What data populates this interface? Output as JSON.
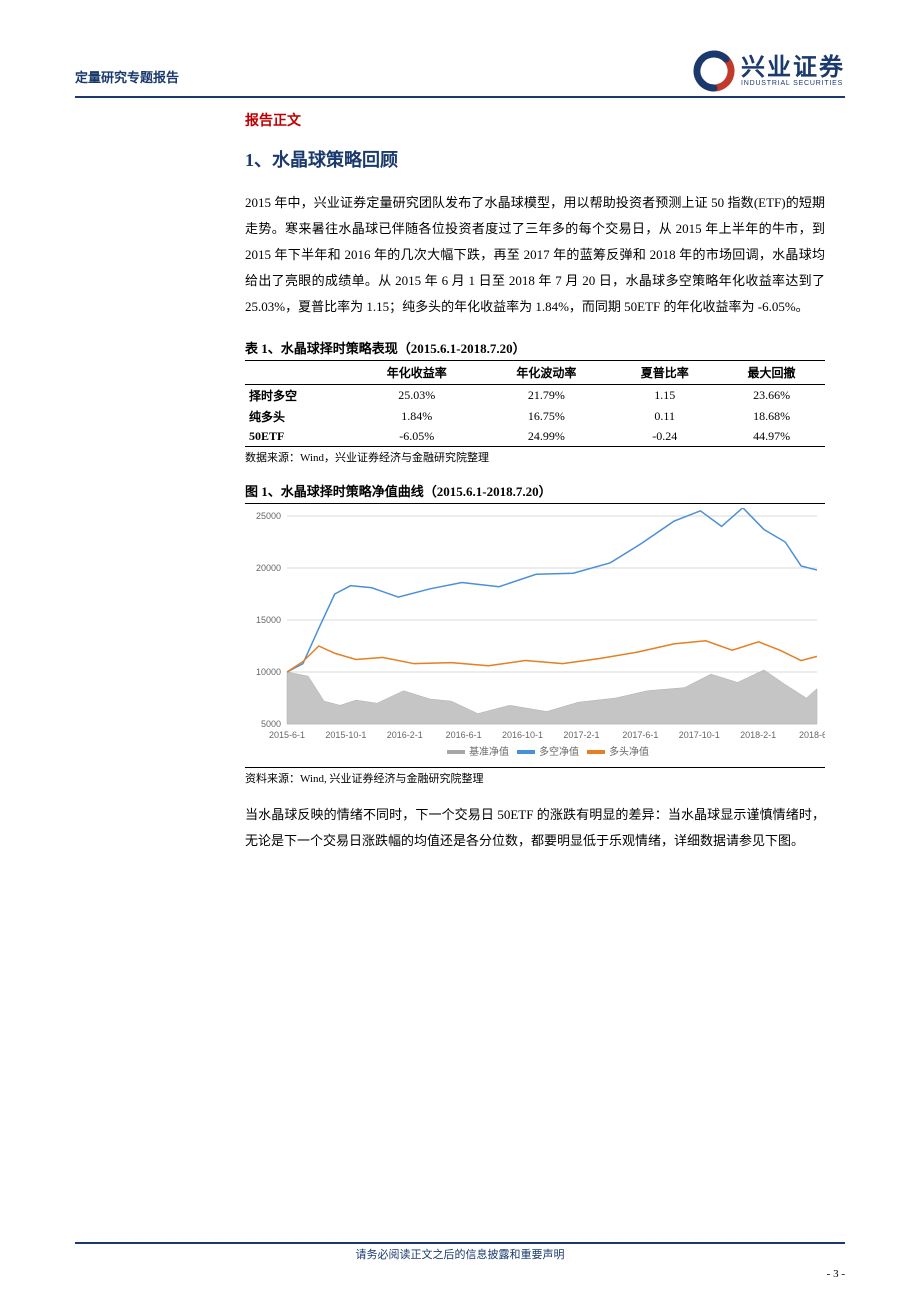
{
  "header": {
    "left_title": "定量研究专题报告",
    "logo_cn": "兴业证券",
    "logo_en": "INDUSTRIAL SECURITIES",
    "logo_colors": {
      "swirl_outer": "#c0392b",
      "swirl_inner": "#1a3a6e"
    }
  },
  "section_label": "报告正文",
  "h1": "1、水晶球策略回顾",
  "para1": "2015 年中，兴业证券定量研究团队发布了水晶球模型，用以帮助投资者预测上证 50 指数(ETF)的短期走势。寒来暑往水晶球已伴随各位投资者度过了三年多的每个交易日，从 2015 年上半年的牛市，到 2015 年下半年和 2016 年的几次大幅下跌，再至 2017 年的蓝筹反弹和 2018 年的市场回调，水晶球均给出了亮眼的成绩单。从 2015 年 6 月 1 日至 2018 年 7 月 20 日，水晶球多空策略年化收益率达到了 25.03%，夏普比率为 1.15；纯多头的年化收益率为 1.84%，而同期 50ETF 的年化收益率为 -6.05%。",
  "table1": {
    "caption": "表 1、水晶球择时策略表现（2015.6.1-2018.7.20）",
    "columns": [
      "",
      "年化收益率",
      "年化波动率",
      "夏普比率",
      "最大回撤"
    ],
    "rows": [
      [
        "择时多空",
        "25.03%",
        "21.79%",
        "1.15",
        "23.66%"
      ],
      [
        "纯多头",
        "1.84%",
        "16.75%",
        "0.11",
        "18.68%"
      ],
      [
        "50ETF",
        "-6.05%",
        "24.99%",
        "-0.24",
        "44.97%"
      ]
    ],
    "source": "数据来源：Wind，兴业证券经济与金融研究院整理"
  },
  "chart1": {
    "caption": "图 1、水晶球择时策略净值曲线（2015.6.1-2018.7.20）",
    "type": "line-area",
    "ylim": [
      5000,
      25000
    ],
    "yticks": [
      5000,
      10000,
      15000,
      20000,
      25000
    ],
    "xticks": [
      "2015-6-1",
      "2015-10-1",
      "2016-2-1",
      "2016-6-1",
      "2016-10-1",
      "2017-2-1",
      "2017-6-1",
      "2017-10-1",
      "2018-2-1",
      "2018-6-1"
    ],
    "grid_color": "#d9d9d9",
    "background_color": "#ffffff",
    "axis_fontsize": 9,
    "legend_fontsize": 10,
    "series": [
      {
        "name": "基准净值",
        "label": "基准净值",
        "type": "area",
        "color": "#a6a6a6",
        "fill": "#bfbfbf",
        "points": [
          [
            0,
            10000
          ],
          [
            4,
            9600
          ],
          [
            7,
            7200
          ],
          [
            10,
            6800
          ],
          [
            13,
            7300
          ],
          [
            17,
            7000
          ],
          [
            22,
            8200
          ],
          [
            27,
            7400
          ],
          [
            31,
            7200
          ],
          [
            36,
            6000
          ],
          [
            42,
            6800
          ],
          [
            49,
            6200
          ],
          [
            55,
            7100
          ],
          [
            62,
            7500
          ],
          [
            68,
            8200
          ],
          [
            75,
            8500
          ],
          [
            80,
            9800
          ],
          [
            85,
            9000
          ],
          [
            90,
            10200
          ],
          [
            94,
            8800
          ],
          [
            98,
            7500
          ],
          [
            100,
            8400
          ]
        ]
      },
      {
        "name": "多空净值",
        "label": "多空净值",
        "type": "line",
        "color": "#4a90d9",
        "line_width": 1.5,
        "points": [
          [
            0,
            10000
          ],
          [
            3,
            10800
          ],
          [
            6,
            14200
          ],
          [
            9,
            17500
          ],
          [
            12,
            18300
          ],
          [
            16,
            18100
          ],
          [
            21,
            17200
          ],
          [
            27,
            18000
          ],
          [
            33,
            18600
          ],
          [
            40,
            18200
          ],
          [
            47,
            19400
          ],
          [
            54,
            19500
          ],
          [
            61,
            20500
          ],
          [
            67,
            22400
          ],
          [
            73,
            24500
          ],
          [
            78,
            25500
          ],
          [
            82,
            24000
          ],
          [
            86,
            25800
          ],
          [
            90,
            23700
          ],
          [
            94,
            22500
          ],
          [
            97,
            20200
          ],
          [
            100,
            19800
          ]
        ]
      },
      {
        "name": "多头净值",
        "label": "多头净值",
        "type": "line",
        "color": "#e67e22",
        "line_width": 1.5,
        "points": [
          [
            0,
            10000
          ],
          [
            3,
            11000
          ],
          [
            6,
            12500
          ],
          [
            9,
            11800
          ],
          [
            13,
            11200
          ],
          [
            18,
            11400
          ],
          [
            24,
            10800
          ],
          [
            31,
            10900
          ],
          [
            38,
            10600
          ],
          [
            45,
            11100
          ],
          [
            52,
            10800
          ],
          [
            59,
            11300
          ],
          [
            66,
            11900
          ],
          [
            73,
            12700
          ],
          [
            79,
            13000
          ],
          [
            84,
            12100
          ],
          [
            89,
            12900
          ],
          [
            93,
            12100
          ],
          [
            97,
            11100
          ],
          [
            100,
            11500
          ]
        ]
      }
    ],
    "legend": [
      "基准净值",
      "多空净值",
      "多头净值"
    ],
    "legend_colors": [
      "#a6a6a6",
      "#4a90d9",
      "#e67e22"
    ],
    "source": "资料来源：Wind, 兴业证券经济与金融研究院整理"
  },
  "para2": "当水晶球反映的情绪不同时，下一个交易日 50ETF 的涨跌有明显的差异：当水晶球显示谨慎情绪时，无论是下一个交易日涨跌幅的均值还是各分位数，都要明显低于乐观情绪，详细数据请参见下图。",
  "footer": {
    "text": "请务必阅读正文之后的信息披露和重要声明",
    "page": "- 3 -"
  }
}
